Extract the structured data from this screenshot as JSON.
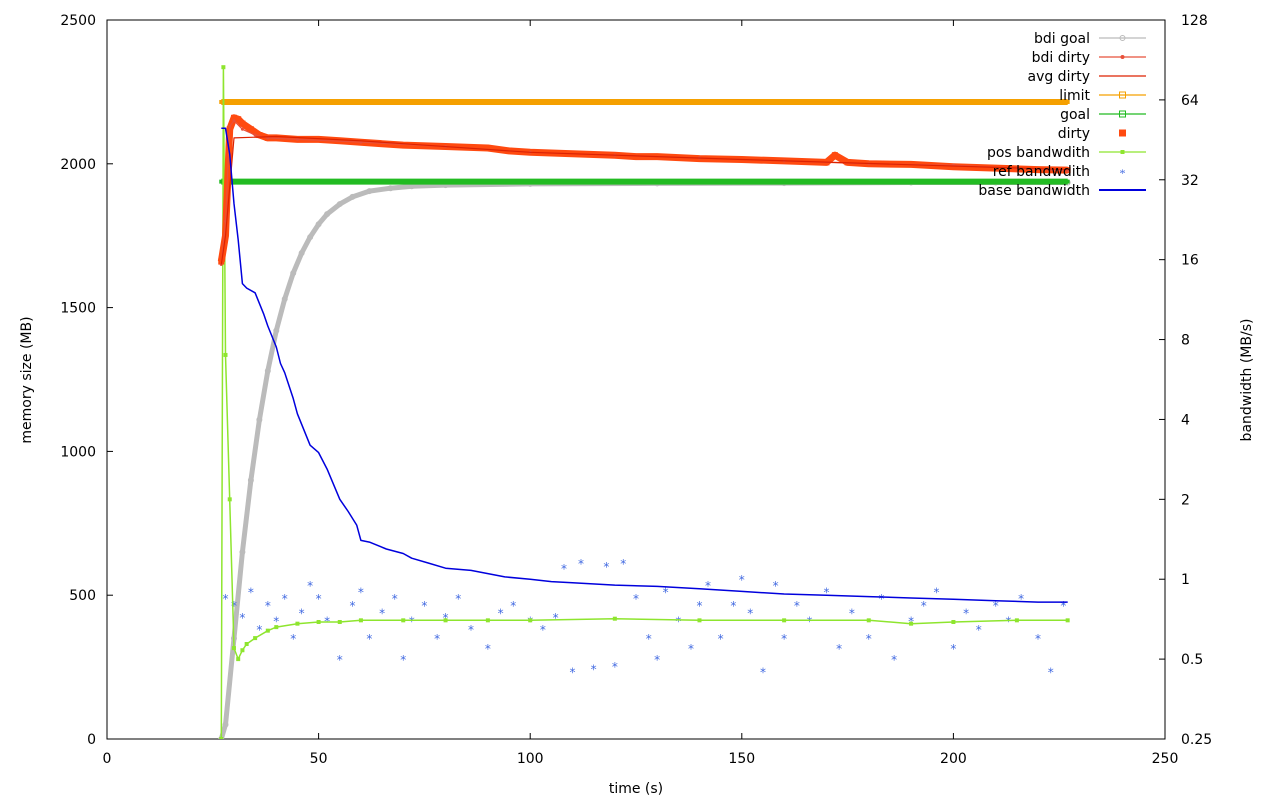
{
  "chart_data": {
    "type": "line",
    "title": "",
    "xlabel": "time (s)",
    "ylabel": "memory size (MB)",
    "y2label": "bandwidth (MB/s)",
    "xlim": [
      0,
      250
    ],
    "ylim": [
      0,
      2500
    ],
    "y2lim": [
      0.25,
      128
    ],
    "y2scale": "log2",
    "x_ticks": [
      "0",
      "50",
      "100",
      "150",
      "200",
      "250"
    ],
    "y_ticks": [
      "0",
      "500",
      "1000",
      "1500",
      "2000",
      "2500"
    ],
    "y2_ticks": [
      "0.25",
      "0.5",
      "1",
      "2",
      "4",
      "8",
      "16",
      "32",
      "64",
      "128"
    ],
    "grid": false,
    "legend_position": "top-right",
    "series": [
      {
        "name": "bdi goal",
        "axis": "left",
        "style": "line-circle",
        "color": "#bbbbbb",
        "x": [
          27,
          28,
          30,
          32,
          34,
          36,
          38,
          40,
          42,
          44,
          46,
          48,
          50,
          52,
          55,
          58,
          62,
          67,
          72,
          80,
          100,
          130,
          160,
          190,
          210,
          227
        ],
        "y": [
          0,
          50,
          350,
          650,
          900,
          1110,
          1280,
          1420,
          1530,
          1620,
          1690,
          1745,
          1790,
          1825,
          1860,
          1885,
          1905,
          1915,
          1922,
          1926,
          1930,
          1932,
          1933,
          1935,
          1935,
          1935
        ]
      },
      {
        "name": "bdi dirty",
        "axis": "left",
        "style": "line-dot",
        "color": "#e8503a",
        "x": [
          27,
          28,
          29,
          30,
          32,
          35,
          38,
          45,
          60,
          80,
          100,
          120,
          140,
          160,
          180,
          200,
          215,
          227
        ],
        "y": [
          1650,
          1800,
          2130,
          2150,
          2120,
          2100,
          2090,
          2085,
          2075,
          2060,
          2040,
          2030,
          2020,
          2010,
          2000,
          1995,
          1985,
          1975
        ]
      },
      {
        "name": "avg dirty",
        "axis": "left",
        "style": "line",
        "color": "#dd2200",
        "x": [
          27,
          28,
          30,
          40,
          60,
          100,
          150,
          227
        ],
        "y": [
          1650,
          1750,
          2090,
          2095,
          2080,
          2040,
          2015,
          1980
        ]
      },
      {
        "name": "limit",
        "axis": "left",
        "style": "line-square",
        "color": "#f5a000",
        "x": [
          27,
          227
        ],
        "y": [
          2215,
          2215
        ]
      },
      {
        "name": "goal",
        "axis": "left",
        "style": "line-square",
        "color": "#22bb22",
        "x": [
          27,
          227
        ],
        "y": [
          1938,
          1938
        ]
      },
      {
        "name": "dirty",
        "axis": "left",
        "style": "thick-points",
        "color": "#ff4a10",
        "x": [
          27,
          28,
          29,
          30,
          31,
          32,
          34,
          36,
          38,
          40,
          45,
          50,
          55,
          60,
          65,
          70,
          80,
          90,
          95,
          100,
          110,
          120,
          125,
          130,
          140,
          150,
          160,
          170,
          172,
          175,
          180,
          190,
          200,
          210,
          220,
          227
        ],
        "y": [
          1660,
          1750,
          2120,
          2160,
          2155,
          2140,
          2120,
          2100,
          2090,
          2090,
          2085,
          2085,
          2080,
          2075,
          2070,
          2065,
          2060,
          2055,
          2045,
          2040,
          2035,
          2030,
          2025,
          2025,
          2018,
          2015,
          2010,
          2005,
          2030,
          2005,
          2000,
          1998,
          1990,
          1985,
          1980,
          1978
        ]
      },
      {
        "name": "pos bandwdith",
        "axis": "right",
        "style": "line-square",
        "color": "#8ee52e",
        "x": [
          27,
          27.5,
          28,
          29,
          30,
          31,
          32,
          33,
          35,
          38,
          40,
          45,
          50,
          55,
          60,
          70,
          80,
          90,
          100,
          120,
          140,
          160,
          180,
          190,
          200,
          215,
          227
        ],
        "y": [
          0.25,
          85,
          7.0,
          2.0,
          0.55,
          0.5,
          0.54,
          0.57,
          0.6,
          0.64,
          0.66,
          0.68,
          0.69,
          0.69,
          0.7,
          0.7,
          0.7,
          0.7,
          0.7,
          0.71,
          0.7,
          0.7,
          0.7,
          0.68,
          0.69,
          0.7,
          0.7
        ]
      },
      {
        "name": "ref bandwdith",
        "axis": "right",
        "style": "stars",
        "color": "#4169e1",
        "x": [
          28,
          30,
          32,
          34,
          36,
          38,
          40,
          42,
          44,
          46,
          48,
          50,
          52,
          55,
          58,
          60,
          62,
          65,
          68,
          70,
          72,
          75,
          78,
          80,
          83,
          86,
          90,
          93,
          96,
          100,
          103,
          106,
          108,
          110,
          112,
          115,
          118,
          120,
          122,
          125,
          128,
          130,
          132,
          135,
          138,
          140,
          142,
          145,
          148,
          150,
          152,
          155,
          158,
          160,
          163,
          166,
          170,
          173,
          176,
          180,
          183,
          186,
          190,
          193,
          196,
          200,
          203,
          206,
          210,
          213,
          216,
          220,
          223,
          226
        ],
        "y": [
          0.85,
          0.8,
          0.72,
          0.9,
          0.65,
          0.8,
          0.7,
          0.85,
          0.6,
          0.75,
          0.95,
          0.85,
          0.7,
          0.5,
          0.8,
          0.9,
          0.6,
          0.75,
          0.85,
          0.5,
          0.7,
          0.8,
          0.6,
          0.72,
          0.85,
          0.65,
          0.55,
          0.75,
          0.8,
          0.7,
          0.65,
          0.72,
          1.1,
          0.45,
          1.15,
          0.46,
          1.12,
          0.47,
          1.15,
          0.85,
          0.6,
          0.5,
          0.9,
          0.7,
          0.55,
          0.8,
          0.95,
          0.6,
          0.8,
          1.0,
          0.75,
          0.45,
          0.95,
          0.6,
          0.8,
          0.7,
          0.9,
          0.55,
          0.75,
          0.6,
          0.85,
          0.5,
          0.7,
          0.8,
          0.9,
          0.55,
          0.75,
          0.65,
          0.8,
          0.7,
          0.85,
          0.6,
          0.45,
          0.8
        ]
      },
      {
        "name": "base bandwidth",
        "axis": "right",
        "style": "line",
        "color": "#0000dd",
        "x": [
          27,
          28,
          29,
          30,
          31,
          32,
          33,
          35,
          37,
          38,
          40,
          41,
          42,
          44,
          45,
          48,
          50,
          52,
          55,
          57,
          59,
          60,
          62,
          66,
          70,
          72,
          76,
          80,
          86,
          90,
          94,
          100,
          105,
          110,
          120,
          130,
          140,
          150,
          160,
          170,
          180,
          190,
          200,
          210,
          220,
          227
        ],
        "y": [
          50,
          50,
          40,
          26,
          19,
          13,
          12.5,
          12,
          10,
          9,
          7.5,
          6.5,
          6,
          4.8,
          4.2,
          3.2,
          3.0,
          2.6,
          2.0,
          1.8,
          1.6,
          1.4,
          1.38,
          1.3,
          1.25,
          1.2,
          1.15,
          1.1,
          1.08,
          1.05,
          1.02,
          1.0,
          0.98,
          0.97,
          0.95,
          0.94,
          0.92,
          0.9,
          0.88,
          0.87,
          0.86,
          0.85,
          0.84,
          0.83,
          0.82,
          0.82
        ]
      }
    ]
  }
}
